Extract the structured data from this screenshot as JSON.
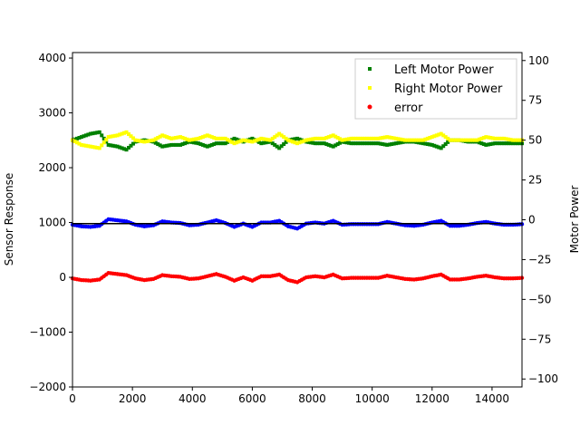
{
  "chart_data": {
    "type": "scatter",
    "title": "",
    "xlabel": "",
    "ylabel_left": "Sensor Response",
    "ylabel_right": "Motor Power",
    "xlim": [
      0,
      15000
    ],
    "ylim_left": [
      -2000,
      4100
    ],
    "ylim_right": [
      -105,
      105
    ],
    "x_ticks": [
      "0",
      "2000",
      "4000",
      "6000",
      "8000",
      "10000",
      "12000",
      "14000"
    ],
    "y_ticks_left": [
      "−2000",
      "−1000",
      "0",
      "1000",
      "2000",
      "3000",
      "4000"
    ],
    "y_ticks_right": [
      "−100",
      "−75",
      "−50",
      "−25",
      "0",
      "25",
      "50",
      "75",
      "100"
    ],
    "grid": false,
    "legend_position": "top-right",
    "reference_line": {
      "axis": "left",
      "value": 980,
      "color": "#000000"
    },
    "series": [
      {
        "name": "Left Motor Power",
        "axis": "right",
        "color": "#008000",
        "marker": "square",
        "x": [
          0,
          300,
          600,
          900,
          1200,
          1500,
          1800,
          2100,
          2400,
          2700,
          3000,
          3300,
          3600,
          3900,
          4200,
          4500,
          4800,
          5100,
          5400,
          5700,
          6000,
          6300,
          6600,
          6900,
          7200,
          7500,
          7800,
          8100,
          8400,
          8700,
          9000,
          9300,
          9600,
          9900,
          10200,
          10500,
          10800,
          11100,
          11400,
          11700,
          12000,
          12300,
          12600,
          12900,
          13200,
          13500,
          13800,
          14100,
          14400,
          14700,
          15000
        ],
        "y": [
          50,
          52,
          54,
          55,
          47,
          46,
          44,
          49,
          50,
          49,
          46,
          47,
          47,
          49,
          48,
          46,
          48,
          48,
          51,
          49,
          51,
          48,
          49,
          45,
          50,
          51,
          49,
          48,
          48,
          46,
          49,
          48,
          48,
          48,
          48,
          47,
          48,
          49,
          49,
          48,
          47,
          45,
          50,
          50,
          49,
          49,
          47,
          48,
          48,
          48,
          48
        ]
      },
      {
        "name": "Right Motor Power",
        "axis": "right",
        "color": "#ffff00",
        "marker": "square",
        "x": [
          0,
          300,
          600,
          900,
          1200,
          1500,
          1800,
          2100,
          2400,
          2700,
          3000,
          3300,
          3600,
          3900,
          4200,
          4500,
          4800,
          5100,
          5400,
          5700,
          6000,
          6300,
          6600,
          6900,
          7200,
          7500,
          7800,
          8100,
          8400,
          8700,
          9000,
          9300,
          9600,
          9900,
          10200,
          10500,
          10800,
          11100,
          11400,
          11700,
          12000,
          12300,
          12600,
          12900,
          13200,
          13500,
          13800,
          14100,
          14400,
          14700,
          15000
        ],
        "y": [
          50,
          47,
          46,
          45,
          52,
          53,
          55,
          50,
          49,
          50,
          53,
          51,
          52,
          50,
          51,
          53,
          51,
          51,
          48,
          50,
          49,
          51,
          50,
          54,
          50,
          48,
          50,
          51,
          51,
          53,
          50,
          51,
          51,
          51,
          51,
          52,
          51,
          50,
          50,
          50,
          52,
          54,
          50,
          50,
          50,
          50,
          52,
          51,
          51,
          50,
          50
        ]
      },
      {
        "name": "error",
        "axis": "left",
        "color": "#ff0000",
        "marker": "circle",
        "x": [
          0,
          300,
          600,
          900,
          1200,
          1500,
          1800,
          2100,
          2400,
          2700,
          3000,
          3300,
          3600,
          3900,
          4200,
          4500,
          4800,
          5100,
          5400,
          5700,
          6000,
          6300,
          6600,
          6900,
          7200,
          7500,
          7800,
          8100,
          8400,
          8700,
          9000,
          9300,
          9600,
          9900,
          10200,
          10500,
          10800,
          11100,
          11400,
          11700,
          12000,
          12300,
          12600,
          12900,
          13200,
          13500,
          13800,
          14100,
          14400,
          14700,
          15000
        ],
        "y": [
          -20,
          -50,
          -60,
          -40,
          80,
          60,
          40,
          -20,
          -50,
          -30,
          40,
          20,
          10,
          -30,
          -20,
          20,
          60,
          10,
          -60,
          0,
          -60,
          20,
          20,
          50,
          -50,
          -90,
          0,
          20,
          0,
          50,
          -20,
          -10,
          -10,
          -10,
          -10,
          30,
          0,
          -30,
          -40,
          -20,
          20,
          50,
          -40,
          -40,
          -20,
          10,
          30,
          0,
          -20,
          -20,
          -10
        ]
      },
      {
        "name": "",
        "axis": "left",
        "color": "#0000ff",
        "marker": "circle",
        "x": [
          0,
          300,
          600,
          900,
          1200,
          1500,
          1800,
          2100,
          2400,
          2700,
          3000,
          3300,
          3600,
          3900,
          4200,
          4500,
          4800,
          5100,
          5400,
          5700,
          6000,
          6300,
          6600,
          6900,
          7200,
          7500,
          7800,
          8100,
          8400,
          8700,
          9000,
          9300,
          9600,
          9900,
          10200,
          10500,
          10800,
          11100,
          11400,
          11700,
          12000,
          12300,
          12600,
          12900,
          13200,
          13500,
          13800,
          14100,
          14400,
          14700,
          15000
        ],
        "y": [
          960,
          930,
          920,
          940,
          1060,
          1040,
          1020,
          960,
          930,
          950,
          1020,
          1000,
          990,
          950,
          960,
          1000,
          1040,
          990,
          920,
          980,
          920,
          1000,
          1000,
          1030,
          930,
          890,
          980,
          1000,
          980,
          1030,
          960,
          970,
          970,
          970,
          970,
          1010,
          980,
          950,
          940,
          960,
          1000,
          1030,
          940,
          940,
          960,
          990,
          1010,
          980,
          960,
          960,
          970
        ]
      }
    ]
  }
}
